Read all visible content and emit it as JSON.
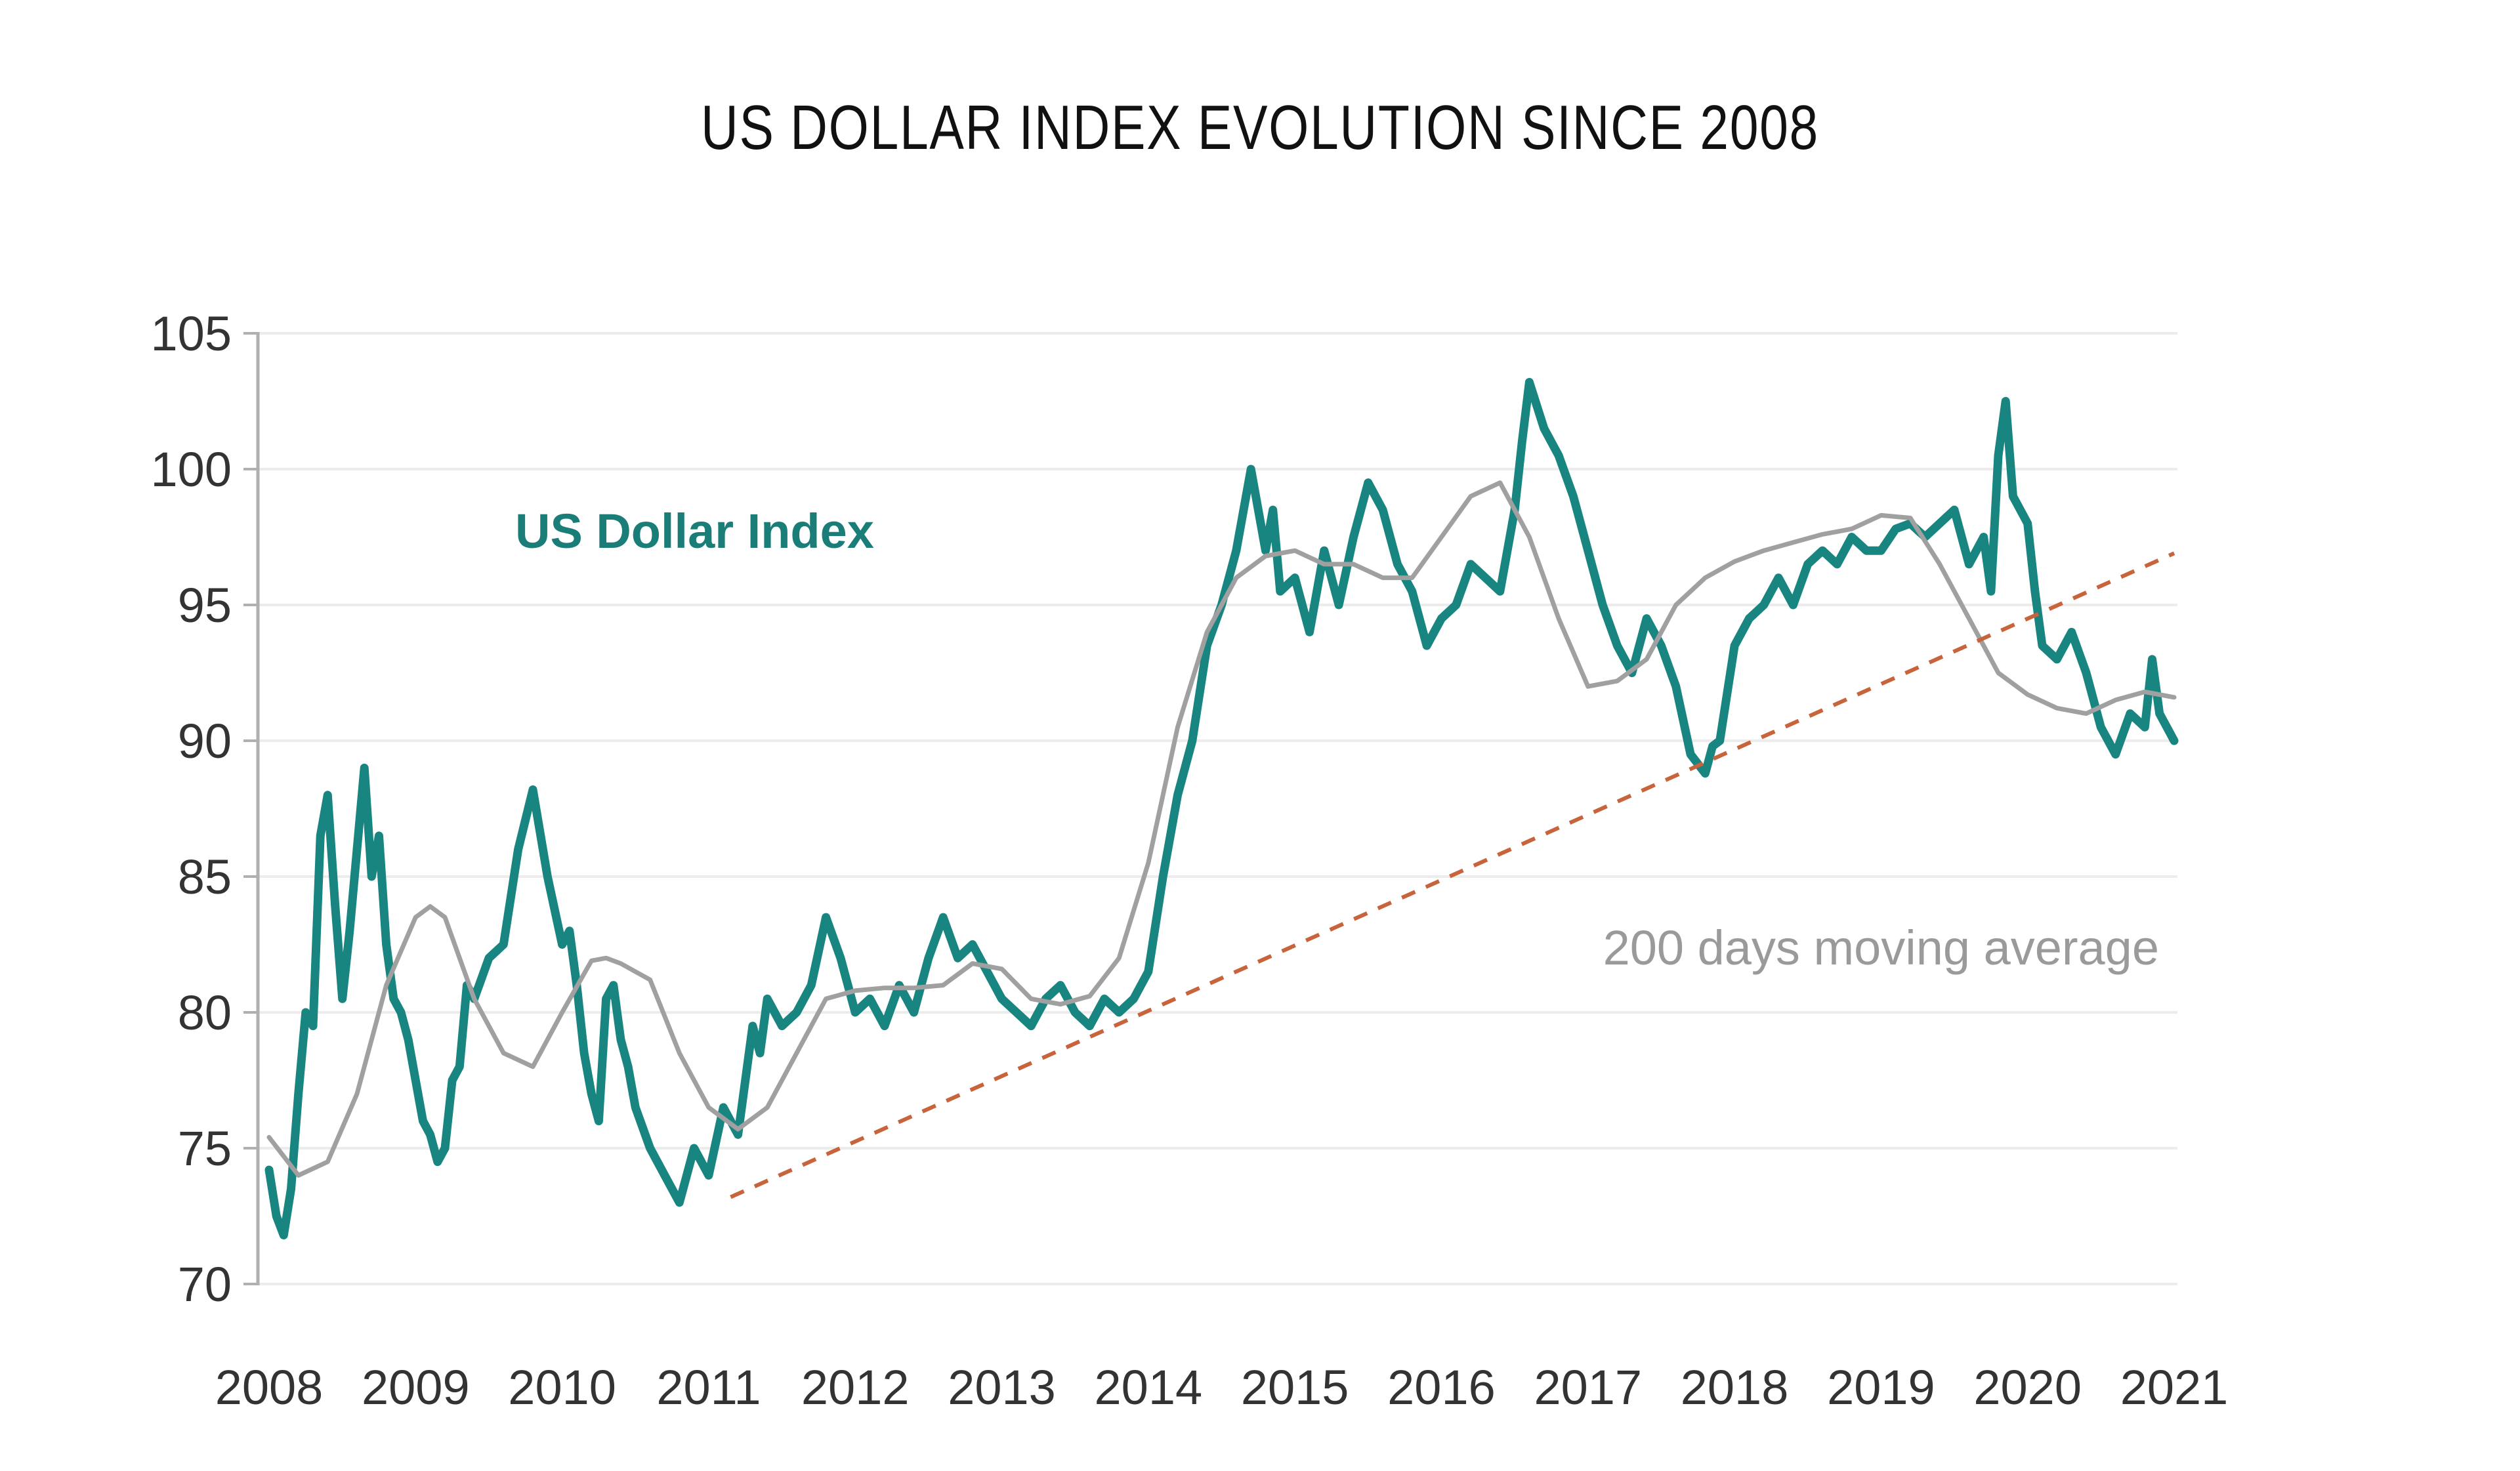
{
  "chart_data": {
    "type": "line",
    "title": "US DOLLAR INDEX EVOLUTION SINCE 2008",
    "xlabel": "",
    "ylabel": "",
    "xlim": [
      2008,
      2021
    ],
    "ylim": [
      70,
      105
    ],
    "grid": true,
    "y_ticks": [
      70,
      75,
      80,
      85,
      90,
      95,
      100,
      105
    ],
    "x_ticks": [
      "2008",
      "2009",
      "2010",
      "2011",
      "2012",
      "2013",
      "2014",
      "2015",
      "2016",
      "2017",
      "2018",
      "2019",
      "2020",
      "2021"
    ],
    "annotations": [
      {
        "text": "US Dollar Index",
        "series": "US Dollar Index",
        "position": "upper-left"
      },
      {
        "text": "200 days moving average",
        "series": "200 days moving average",
        "position": "right"
      }
    ],
    "colors": {
      "usd": "#188580",
      "ma": "#a0a0a0",
      "trend": "#c8643c",
      "grid": "#ececec",
      "axis": "#b0b0b0",
      "label_usd": "#1a7d78"
    },
    "series": [
      {
        "name": "US Dollar Index",
        "x": [
          2008.0,
          2008.05,
          2008.1,
          2008.15,
          2008.2,
          2008.25,
          2008.3,
          2008.35,
          2008.4,
          2008.45,
          2008.5,
          2008.55,
          2008.6,
          2008.65,
          2008.7,
          2008.75,
          2008.8,
          2008.85,
          2008.9,
          2008.95,
          2009.0,
          2009.05,
          2009.1,
          2009.15,
          2009.2,
          2009.25,
          2009.3,
          2009.35,
          2009.4,
          2009.5,
          2009.6,
          2009.7,
          2009.8,
          2009.9,
          2010.0,
          2010.05,
          2010.1,
          2010.15,
          2010.2,
          2010.25,
          2010.3,
          2010.35,
          2010.4,
          2010.45,
          2010.5,
          2010.6,
          2010.7,
          2010.8,
          2010.9,
          2011.0,
          2011.1,
          2011.2,
          2011.3,
          2011.35,
          2011.4,
          2011.5,
          2011.6,
          2011.7,
          2011.8,
          2011.9,
          2012.0,
          2012.1,
          2012.2,
          2012.3,
          2012.4,
          2012.5,
          2012.6,
          2012.7,
          2012.8,
          2012.9,
          2013.0,
          2013.1,
          2013.2,
          2013.3,
          2013.4,
          2013.5,
          2013.6,
          2013.7,
          2013.8,
          2013.9,
          2014.0,
          2014.1,
          2014.2,
          2014.3,
          2014.4,
          2014.5,
          2014.6,
          2014.7,
          2014.8,
          2014.85,
          2014.9,
          2015.0,
          2015.1,
          2015.2,
          2015.3,
          2015.4,
          2015.5,
          2015.6,
          2015.7,
          2015.8,
          2015.9,
          2016.0,
          2016.1,
          2016.2,
          2016.3,
          2016.4,
          2016.5,
          2016.55,
          2016.6,
          2016.7,
          2016.8,
          2016.9,
          2017.0,
          2017.1,
          2017.2,
          2017.3,
          2017.4,
          2017.5,
          2017.6,
          2017.7,
          2017.8,
          2017.85,
          2017.9,
          2018.0,
          2018.1,
          2018.2,
          2018.3,
          2018.4,
          2018.5,
          2018.6,
          2018.7,
          2018.8,
          2018.9,
          2019.0,
          2019.1,
          2019.2,
          2019.3,
          2019.4,
          2019.5,
          2019.6,
          2019.7,
          2019.75,
          2019.8,
          2019.85,
          2019.9,
          2020.0,
          2020.05,
          2020.1,
          2020.2,
          2020.3,
          2020.4,
          2020.5,
          2020.6,
          2020.7,
          2020.8,
          2020.85,
          2020.9,
          2021.0
        ],
        "y": [
          74.2,
          72.5,
          71.8,
          73.5,
          77.0,
          80.0,
          79.5,
          86.5,
          88.0,
          84.0,
          80.5,
          83.0,
          86.0,
          89.0,
          85.0,
          86.5,
          82.5,
          80.5,
          80.0,
          79.0,
          77.5,
          76.0,
          75.5,
          74.5,
          75.0,
          77.5,
          78.0,
          81.0,
          80.5,
          82.0,
          82.5,
          86.0,
          88.2,
          85.0,
          82.5,
          83.0,
          81.0,
          78.5,
          77.0,
          76.0,
          80.5,
          81.0,
          79.0,
          78.0,
          76.5,
          75.0,
          74.0,
          73.0,
          75.0,
          74.0,
          76.5,
          75.5,
          79.5,
          78.5,
          80.5,
          79.5,
          80.0,
          81.0,
          83.5,
          82.0,
          80.0,
          80.5,
          79.5,
          81.0,
          80.0,
          82.0,
          83.5,
          82.0,
          82.5,
          81.5,
          80.5,
          80.0,
          79.5,
          80.5,
          81.0,
          80.0,
          79.5,
          80.5,
          80.0,
          80.5,
          81.5,
          85.0,
          88.0,
          90.0,
          93.5,
          95.0,
          97.0,
          100.0,
          97.0,
          98.5,
          95.5,
          96.0,
          94.0,
          97.0,
          95.0,
          97.5,
          99.5,
          98.5,
          96.5,
          95.5,
          93.5,
          94.5,
          95.0,
          96.5,
          96.0,
          95.5,
          98.5,
          101.0,
          103.2,
          101.5,
          100.5,
          99.0,
          97.0,
          95.0,
          93.5,
          92.5,
          94.5,
          93.5,
          92.0,
          89.5,
          88.8,
          89.8,
          90.0,
          93.5,
          94.5,
          95.0,
          96.0,
          95.0,
          96.5,
          97.0,
          96.5,
          97.5,
          97.0,
          97.0,
          97.8,
          98.0,
          97.5,
          98.0,
          98.5,
          96.5,
          97.5,
          95.5,
          100.5,
          102.5,
          99.0,
          98.0,
          95.5,
          93.5,
          93.0,
          94.0,
          92.5,
          90.5,
          89.5,
          91.0,
          90.5,
          93.0,
          91.0,
          90.0
        ]
      },
      {
        "name": "200 days moving average",
        "x": [
          2008.0,
          2008.2,
          2008.4,
          2008.6,
          2008.8,
          2009.0,
          2009.1,
          2009.2,
          2009.3,
          2009.4,
          2009.6,
          2009.8,
          2010.0,
          2010.2,
          2010.3,
          2010.4,
          2010.6,
          2010.8,
          2011.0,
          2011.2,
          2011.4,
          2011.6,
          2011.8,
          2012.0,
          2012.2,
          2012.4,
          2012.6,
          2012.8,
          2013.0,
          2013.2,
          2013.4,
          2013.6,
          2013.8,
          2014.0,
          2014.2,
          2014.4,
          2014.6,
          2014.8,
          2015.0,
          2015.2,
          2015.4,
          2015.6,
          2015.8,
          2016.0,
          2016.2,
          2016.4,
          2016.6,
          2016.8,
          2017.0,
          2017.2,
          2017.4,
          2017.6,
          2017.8,
          2018.0,
          2018.2,
          2018.4,
          2018.6,
          2018.8,
          2019.0,
          2019.2,
          2019.4,
          2019.6,
          2019.8,
          2020.0,
          2020.2,
          2020.4,
          2020.6,
          2020.8,
          2021.0
        ],
        "y": [
          75.4,
          74.0,
          74.5,
          77.0,
          81.0,
          83.5,
          83.9,
          83.5,
          82.0,
          80.5,
          78.5,
          78.0,
          80.0,
          81.9,
          82.0,
          81.8,
          81.2,
          78.5,
          76.5,
          75.7,
          76.5,
          78.5,
          80.5,
          80.8,
          80.9,
          80.9,
          81.0,
          81.8,
          81.6,
          80.5,
          80.3,
          80.6,
          82.0,
          85.5,
          90.5,
          94.0,
          96.0,
          96.8,
          97.0,
          96.5,
          96.5,
          96.0,
          96.0,
          97.5,
          99.0,
          99.5,
          97.5,
          94.5,
          92.0,
          92.2,
          93.0,
          95.0,
          96.0,
          96.6,
          97.0,
          97.3,
          97.6,
          97.8,
          98.3,
          98.2,
          96.5,
          94.5,
          92.5,
          91.7,
          91.2,
          91.0,
          91.5,
          91.8,
          91.6
        ]
      },
      {
        "name": "Trend line",
        "style": "dashed",
        "x": [
          2011.15,
          2021.0
        ],
        "y": [
          73.2,
          96.9
        ]
      }
    ]
  }
}
